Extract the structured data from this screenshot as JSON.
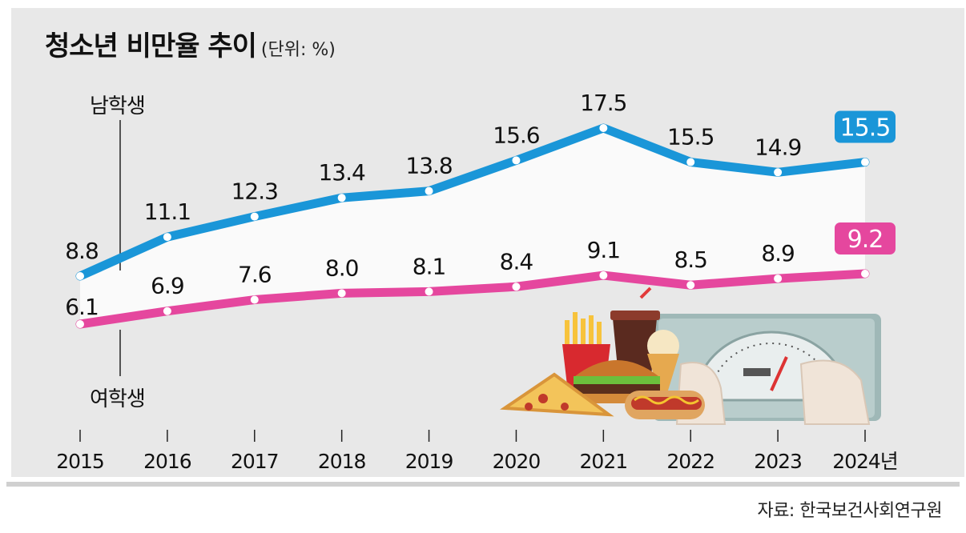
{
  "title": "청소년 비만율 추이",
  "unit": "(단위: %)",
  "source": "자료: 한국보건사회연구원",
  "colors": {
    "male": "#1a96d8",
    "female": "#e5479e",
    "panel": "#e8e8e8",
    "band": "#fafafa"
  },
  "chart_data": {
    "type": "line",
    "title": "청소년 비만율 추이",
    "ylabel": "%",
    "categories": [
      "2015",
      "2016",
      "2017",
      "2018",
      "2019",
      "2020",
      "2021",
      "2022",
      "2023",
      "2024년"
    ],
    "series": [
      {
        "name": "남학생",
        "key": "male",
        "values": [
          8.8,
          11.1,
          12.3,
          13.4,
          13.8,
          15.6,
          17.5,
          15.5,
          14.9,
          15.5
        ],
        "labels": [
          "8.8",
          "11.1",
          "12.3",
          "13.4",
          "13.8",
          "15.6",
          "17.5",
          "15.5",
          "14.9",
          "15.5"
        ]
      },
      {
        "name": "여학생",
        "key": "female",
        "values": [
          6.1,
          6.9,
          7.6,
          8.0,
          8.1,
          8.4,
          9.1,
          8.5,
          8.9,
          9.2
        ],
        "labels": [
          "6.1",
          "6.9",
          "7.6",
          "8.0",
          "8.1",
          "8.4",
          "9.1",
          "8.5",
          "8.9",
          "9.2"
        ]
      }
    ],
    "highlighted_last_value": true,
    "legend": "direct labels at left"
  },
  "illustration": "fast-food-and-scale-icon"
}
